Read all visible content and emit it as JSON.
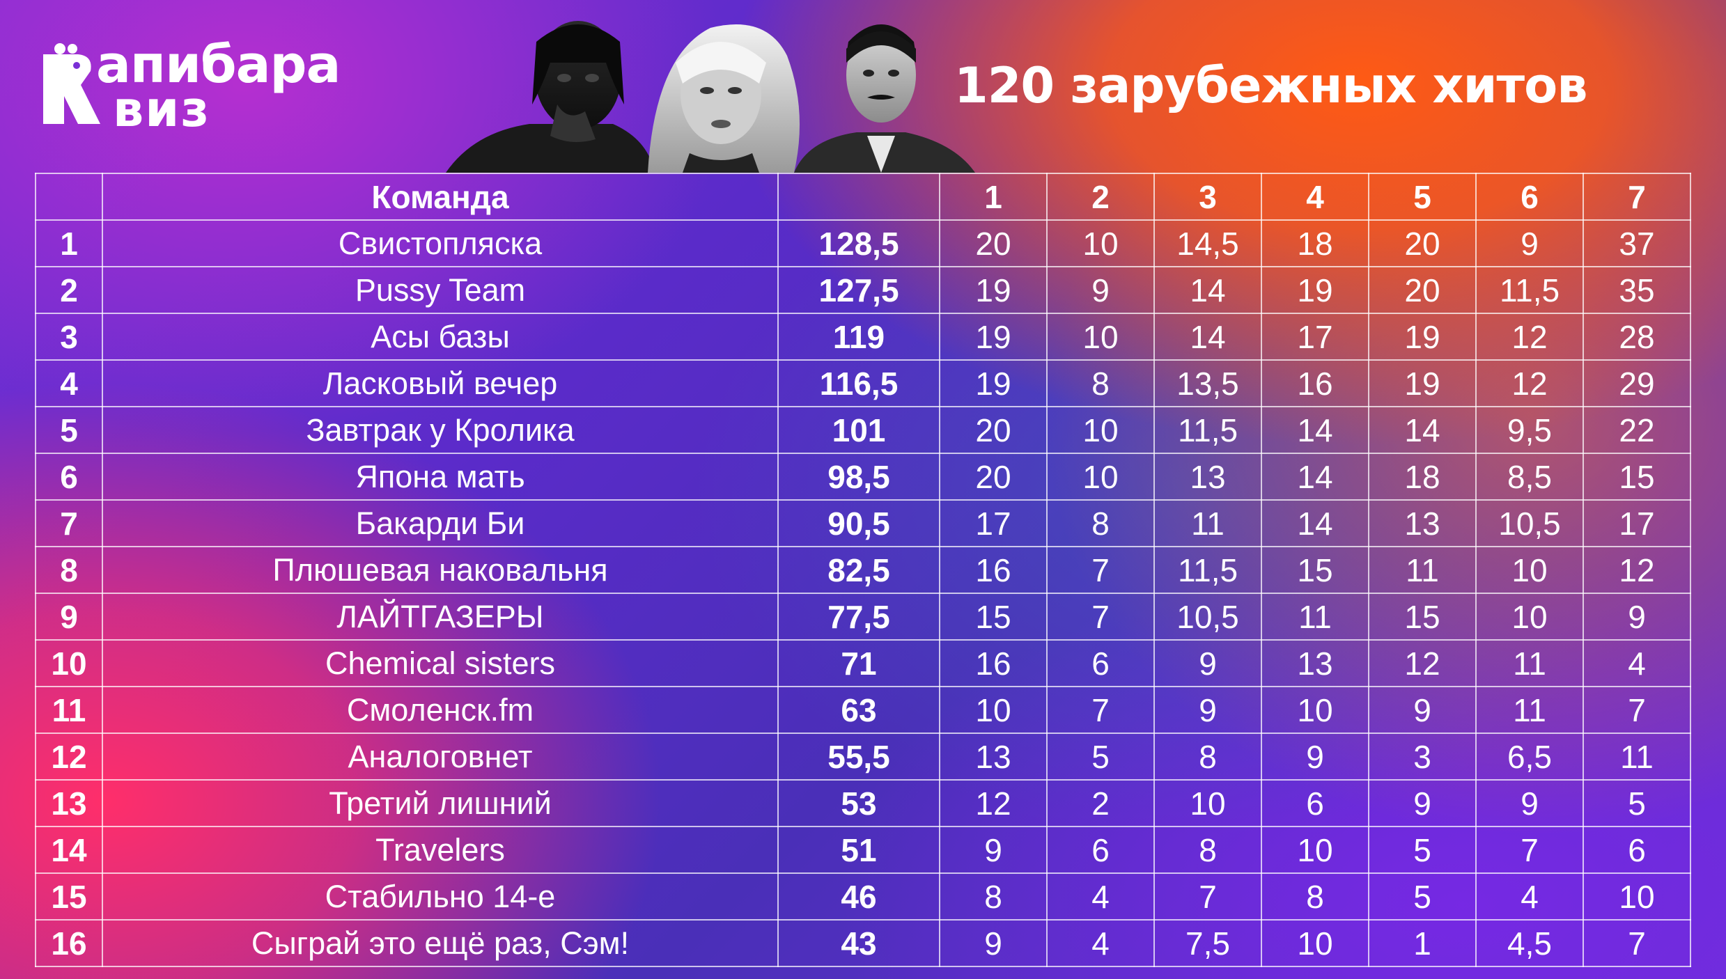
{
  "logo": {
    "line1": "апибара",
    "line2": "виз",
    "colors": {
      "text": "#ffffff"
    }
  },
  "title": "120 зарубежных хитов",
  "table": {
    "headers": {
      "place": "",
      "team": "Команда",
      "total": "",
      "rounds": [
        "1",
        "2",
        "3",
        "4",
        "5",
        "6",
        "7"
      ]
    },
    "rows": [
      {
        "place": "1",
        "team": "Свистопляска",
        "total": "128,5",
        "rounds": [
          "20",
          "10",
          "14,5",
          "18",
          "20",
          "9",
          "37"
        ]
      },
      {
        "place": "2",
        "team": "Pussy Team",
        "total": "127,5",
        "rounds": [
          "19",
          "9",
          "14",
          "19",
          "20",
          "11,5",
          "35"
        ]
      },
      {
        "place": "3",
        "team": "Асы базы",
        "total": "119",
        "rounds": [
          "19",
          "10",
          "14",
          "17",
          "19",
          "12",
          "28"
        ]
      },
      {
        "place": "4",
        "team": "Ласковый вечер",
        "total": "116,5",
        "rounds": [
          "19",
          "8",
          "13,5",
          "16",
          "19",
          "12",
          "29"
        ]
      },
      {
        "place": "5",
        "team": "Завтрак у Кролика",
        "total": "101",
        "rounds": [
          "20",
          "10",
          "11,5",
          "14",
          "14",
          "9,5",
          "22"
        ]
      },
      {
        "place": "6",
        "team": "Япона мать",
        "total": "98,5",
        "rounds": [
          "20",
          "10",
          "13",
          "14",
          "18",
          "8,5",
          "15"
        ]
      },
      {
        "place": "7",
        "team": "Бакарди Би",
        "total": "90,5",
        "rounds": [
          "17",
          "8",
          "11",
          "14",
          "13",
          "10,5",
          "17"
        ]
      },
      {
        "place": "8",
        "team": "Плюшевая наковальня",
        "total": "82,5",
        "rounds": [
          "16",
          "7",
          "11,5",
          "15",
          "11",
          "10",
          "12"
        ]
      },
      {
        "place": "9",
        "team": "ЛАЙТГАЗЕРЫ",
        "total": "77,5",
        "rounds": [
          "15",
          "7",
          "10,5",
          "11",
          "15",
          "10",
          "9"
        ]
      },
      {
        "place": "10",
        "team": "Chemical sisters",
        "total": "71",
        "rounds": [
          "16",
          "6",
          "9",
          "13",
          "12",
          "11",
          "4"
        ]
      },
      {
        "place": "11",
        "team": "Смоленск.fm",
        "total": "63",
        "rounds": [
          "10",
          "7",
          "9",
          "10",
          "9",
          "11",
          "7"
        ]
      },
      {
        "place": "12",
        "team": "Аналоговнет",
        "total": "55,5",
        "rounds": [
          "13",
          "5",
          "8",
          "9",
          "3",
          "6,5",
          "11"
        ]
      },
      {
        "place": "13",
        "team": "Третий лишний",
        "total": "53",
        "rounds": [
          "12",
          "2",
          "10",
          "6",
          "9",
          "9",
          "5"
        ]
      },
      {
        "place": "14",
        "team": "Travelers",
        "total": "51",
        "rounds": [
          "9",
          "6",
          "8",
          "10",
          "5",
          "7",
          "6"
        ]
      },
      {
        "place": "15",
        "team": "Стабильно 14-е",
        "total": "46",
        "rounds": [
          "8",
          "4",
          "7",
          "8",
          "5",
          "4",
          "10"
        ]
      },
      {
        "place": "16",
        "team": "Сыграй это ещё раз, Сэм!",
        "total": "43",
        "rounds": [
          "9",
          "4",
          "7,5",
          "10",
          "1",
          "4,5",
          "7"
        ]
      }
    ]
  }
}
